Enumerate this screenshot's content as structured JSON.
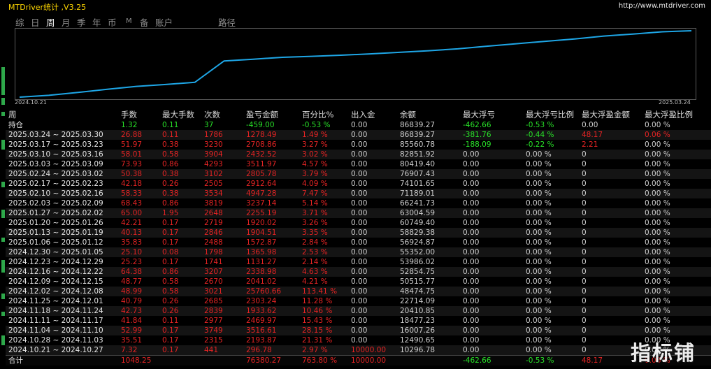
{
  "app": {
    "title": "MTDriver统计 ,V3.25",
    "site": "http://www.mtdriver.com",
    "watermark": "指标铺"
  },
  "colors": {
    "line": "#1ea6e6",
    "positive": "#e62424",
    "negative": "#28e028",
    "neutral": "#e6e6e6"
  },
  "tabs": [
    {
      "label": "综",
      "active": false
    },
    {
      "label": "日",
      "active": false
    },
    {
      "label": "周",
      "active": true
    },
    {
      "label": "月",
      "active": false
    },
    {
      "label": "季",
      "active": false
    },
    {
      "label": "年",
      "active": false
    },
    {
      "label": "币",
      "active": false
    },
    {
      "label": "M",
      "active": false
    },
    {
      "label": "备",
      "active": false
    },
    {
      "label": "账户",
      "active": false
    },
    {
      "label": "路径",
      "active": false
    }
  ],
  "chart_data": {
    "type": "line",
    "title": "",
    "xlabel": "",
    "ylabel": "",
    "x_range": [
      "2024.10.21",
      "2025.03.24"
    ],
    "x_tick_labels": [
      "2024.10.21",
      "2025.03.24"
    ],
    "grid": false,
    "series": [
      {
        "values": [
          296.78,
          2490.56,
          6006.09,
          9755.2,
          13224.22,
          15557.94,
          18158.8,
          43919.46,
          45960.66,
          48299.54,
          49430.81,
          50796.79,
          52369.69,
          54274.2,
          56194.22,
          58449.41,
          61686.55,
          64599.19,
          67511.83,
          70317.63,
          73829.61,
          76262.14,
          78970.99,
          80249.48
        ]
      }
    ]
  },
  "table": {
    "headers": [
      "周",
      "手数",
      "最大手数",
      "次数",
      "盈亏金额",
      "百分比%",
      "出入金",
      "余额",
      "最大浮亏",
      "最大浮亏比例",
      "最大浮盈金额",
      "最大浮盈比例"
    ],
    "rows": [
      [
        "持仓",
        "1.32",
        "0.11",
        "37",
        "-459.00",
        "-0.53 %",
        "0.00",
        "86839.27",
        "-462.66",
        "-0.53 %",
        "0.00",
        "0.00 %"
      ],
      [
        "2025.03.24 ~ 2025.03.30",
        "26.88",
        "0.11",
        "1786",
        "1278.49",
        "1.49 %",
        "0.00",
        "86839.27",
        "-381.76",
        "-0.44 %",
        "48.17",
        "0.06 %"
      ],
      [
        "2025.03.17 ~ 2025.03.23",
        "51.97",
        "0.38",
        "3230",
        "2708.86",
        "3.27 %",
        "0.00",
        "85560.78",
        "-188.09",
        "-0.22 %",
        "2.21",
        "0.00 %"
      ],
      [
        "2025.03.10 ~ 2025.03.16",
        "58.01",
        "0.58",
        "3904",
        "2432.52",
        "3.02 %",
        "0.00",
        "82851.92",
        "0.00",
        "0.00 %",
        "0",
        "0.00 %"
      ],
      [
        "2025.03.03 ~ 2025.03.09",
        "73.93",
        "0.86",
        "4293",
        "3511.97",
        "4.57 %",
        "0.00",
        "80419.40",
        "0.00",
        "0.00 %",
        "0",
        "0.00 %"
      ],
      [
        "2025.02.24 ~ 2025.03.02",
        "50.38",
        "0.38",
        "3102",
        "2805.78",
        "3.79 %",
        "0.00",
        "76907.43",
        "0.00",
        "0.00 %",
        "0",
        "0.00 %"
      ],
      [
        "2025.02.17 ~ 2025.02.23",
        "42.18",
        "0.26",
        "2505",
        "2912.64",
        "4.09 %",
        "0.00",
        "74101.65",
        "0.00",
        "0.00 %",
        "0",
        "0.00 %"
      ],
      [
        "2025.02.10 ~ 2025.02.16",
        "58.33",
        "0.38",
        "3534",
        "4947.28",
        "7.47 %",
        "0.00",
        "71189.01",
        "0.00",
        "0.00 %",
        "0",
        "0.00 %"
      ],
      [
        "2025.02.03 ~ 2025.02.09",
        "68.43",
        "0.86",
        "3819",
        "3237.14",
        "5.14 %",
        "0.00",
        "66241.73",
        "0.00",
        "0.00 %",
        "0",
        "0.00 %"
      ],
      [
        "2025.01.27 ~ 2025.02.02",
        "65.00",
        "1.95",
        "2648",
        "2255.19",
        "3.71 %",
        "0.00",
        "63004.59",
        "0.00",
        "0.00 %",
        "0",
        "0.00 %"
      ],
      [
        "2025.01.20 ~ 2025.01.26",
        "42.21",
        "0.17",
        "2719",
        "1920.02",
        "3.26 %",
        "0.00",
        "60749.40",
        "0.00",
        "0.00 %",
        "0",
        "0.00 %"
      ],
      [
        "2025.01.13 ~ 2025.01.19",
        "40.13",
        "0.17",
        "2846",
        "1904.51",
        "3.35 %",
        "0.00",
        "58829.38",
        "0.00",
        "0.00 %",
        "0",
        "0.00 %"
      ],
      [
        "2025.01.06 ~ 2025.01.12",
        "35.83",
        "0.17",
        "2488",
        "1572.87",
        "2.84 %",
        "0.00",
        "56924.87",
        "0.00",
        "0.00 %",
        "0",
        "0.00 %"
      ],
      [
        "2024.12.30 ~ 2025.01.05",
        "25.10",
        "0.08",
        "1798",
        "1365.98",
        "2.53 %",
        "0.00",
        "55352.00",
        "0.00",
        "0.00 %",
        "0",
        "0.00 %"
      ],
      [
        "2024.12.23 ~ 2024.12.29",
        "25.23",
        "0.17",
        "1741",
        "1131.27",
        "2.14 %",
        "0.00",
        "53986.02",
        "0.00",
        "0.00 %",
        "0",
        "0.00 %"
      ],
      [
        "2024.12.16 ~ 2024.12.22",
        "64.38",
        "0.86",
        "3207",
        "2338.98",
        "4.63 %",
        "0.00",
        "52854.75",
        "0.00",
        "0.00 %",
        "0",
        "0.00 %"
      ],
      [
        "2024.12.09 ~ 2024.12.15",
        "48.77",
        "0.58",
        "2670",
        "2041.02",
        "4.21 %",
        "0.00",
        "50515.77",
        "0.00",
        "0.00 %",
        "0",
        "0.00 %"
      ],
      [
        "2024.12.02 ~ 2024.12.08",
        "48.99",
        "0.58",
        "3021",
        "25760.66",
        "113.41 %",
        "0.00",
        "48474.75",
        "0.00",
        "0.00 %",
        "0",
        "0.00 %"
      ],
      [
        "2024.11.25 ~ 2024.12.01",
        "40.79",
        "0.26",
        "2685",
        "2303.24",
        "11.28 %",
        "0.00",
        "22714.09",
        "0.00",
        "0.00 %",
        "0",
        "0.00 %"
      ],
      [
        "2024.11.18 ~ 2024.11.24",
        "42.73",
        "0.26",
        "2839",
        "1933.62",
        "10.46 %",
        "0.00",
        "20410.85",
        "0.00",
        "0.00 %",
        "0",
        "0.00 %"
      ],
      [
        "2024.11.11 ~ 2024.11.17",
        "41.84",
        "0.11",
        "2977",
        "2469.97",
        "15.43 %",
        "0.00",
        "18477.23",
        "0.00",
        "0.00 %",
        "0",
        "0.00 %"
      ],
      [
        "2024.11.04 ~ 2024.11.10",
        "52.99",
        "0.17",
        "3749",
        "3516.61",
        "28.15 %",
        "0.00",
        "16007.26",
        "0.00",
        "0.00 %",
        "0",
        "0.00 %"
      ],
      [
        "2024.10.28 ~ 2024.11.03",
        "35.51",
        "0.17",
        "2315",
        "2193.87",
        "21.31 %",
        "0.00",
        "12490.65",
        "0.00",
        "0.00 %",
        "0",
        "0.00 %"
      ],
      [
        "2024.10.21 ~ 2024.10.27",
        "7.32",
        "0.17",
        "441",
        "296.78",
        "2.97 %",
        "10000.00",
        "10296.78",
        "0.00",
        "0.00 %",
        "0",
        "0.00 %"
      ]
    ],
    "total": [
      "合计",
      "1048.25",
      "",
      "",
      "76380.27",
      "763.80 %",
      "10000.00",
      "",
      "-462.66",
      "-0.53 %",
      "48.17",
      "0.06 %"
    ]
  }
}
